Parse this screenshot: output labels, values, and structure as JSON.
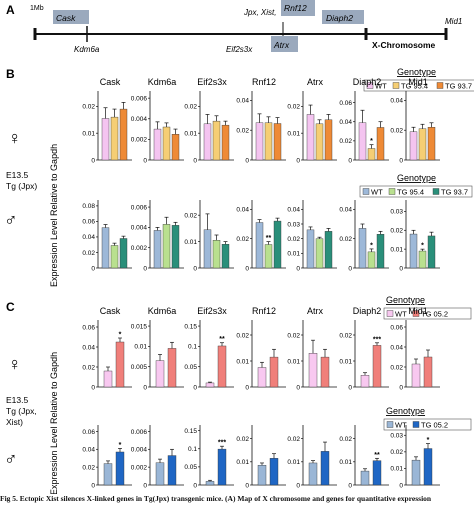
{
  "panel_labels": {
    "a": "A",
    "b": "B",
    "c": "C"
  },
  "map": {
    "start_label": "1Mb",
    "end_label": "Mid1",
    "chromosome_label": "X-Chromosome",
    "box_genes": [
      "Cask",
      "Rnf12",
      "Diaph2",
      "Atrx"
    ],
    "label_genes": [
      "Kdm6a",
      "Jpx, Xist,",
      "Eif2s3x",
      "Diaph2",
      "Mid1"
    ]
  },
  "common": {
    "y_axis_title": "Expression Level Relative to Gapdh",
    "genotype_title": "Genotype",
    "female_symbol": "♀",
    "male_symbol": "♂"
  },
  "panel_b": {
    "condition_lines": [
      "E13.5",
      "Tg (Jpx)"
    ],
    "female_legend": [
      "WT",
      "TG 95.4",
      "TG 93.7"
    ],
    "male_legend": [
      "WT",
      "TG 95.4",
      "TG 93.7"
    ]
  },
  "panel_c": {
    "condition_lines": [
      "E13.5",
      "Tg (Jpx,",
      "Xist)"
    ],
    "female_legend": [
      "WT",
      "TG 05.2"
    ],
    "male_legend": [
      "WT",
      "TG 05.2"
    ]
  },
  "caption": "Fig 5. Ectopic Xist silences X-linked genes in Tg(Jpx) transgenic mice. (A) Map of X chromosome and genes for quantitative expression",
  "colors": {
    "b_female": [
      "#f4c4f0",
      "#f5ce74",
      "#ee8a36"
    ],
    "b_male": [
      "#9db8d8",
      "#b9e08f",
      "#2a8f7a"
    ],
    "c_female": [
      "#f8c8f0",
      "#f07f7a"
    ],
    "c_male": [
      "#9ab6d6",
      "#1f66c4"
    ],
    "map_box": "#9aa9bd"
  },
  "chart_data": [
    {
      "panel": "B",
      "row": "female",
      "type": "bar",
      "title": "Cask",
      "yticks": [
        "0",
        "0.01",
        "0.02"
      ],
      "ylim": [
        0,
        0.025
      ],
      "series": [
        {
          "name": "WT",
          "value": 0.0155,
          "err": 0.004
        },
        {
          "name": "TG 95.4",
          "value": 0.016,
          "err": 0.003
        },
        {
          "name": "TG 93.7",
          "value": 0.019,
          "err": 0.0025
        }
      ],
      "sig": []
    },
    {
      "panel": "B",
      "row": "female",
      "type": "bar",
      "title": "Kdm6a",
      "yticks": [
        "0",
        "0.002",
        "0.004",
        "0.006"
      ],
      "ylim": [
        0,
        0.0065
      ],
      "series": [
        {
          "name": "WT",
          "value": 0.003,
          "err": 0.0007
        },
        {
          "name": "TG 95.4",
          "value": 0.0032,
          "err": 0.0004
        },
        {
          "name": "TG 93.7",
          "value": 0.0025,
          "err": 0.0005
        }
      ],
      "sig": []
    },
    {
      "panel": "B",
      "row": "female",
      "type": "bar",
      "title": "Eif2s3x",
      "yticks": [
        "0",
        "0.01",
        "0.02"
      ],
      "ylim": [
        0,
        0.025
      ],
      "series": [
        {
          "name": "WT",
          "value": 0.0135,
          "err": 0.0035
        },
        {
          "name": "TG 95.4",
          "value": 0.0145,
          "err": 0.002
        },
        {
          "name": "TG 93.7",
          "value": 0.013,
          "err": 0.0015
        }
      ],
      "sig": []
    },
    {
      "panel": "B",
      "row": "female",
      "type": "bar",
      "title": "Rnf12",
      "yticks": [
        "0",
        "0.02",
        "0.04"
      ],
      "ylim": [
        0,
        0.045
      ],
      "series": [
        {
          "name": "WT",
          "value": 0.025,
          "err": 0.006
        },
        {
          "name": "TG 95.4",
          "value": 0.025,
          "err": 0.004
        },
        {
          "name": "TG 93.7",
          "value": 0.0245,
          "err": 0.004
        }
      ],
      "sig": []
    },
    {
      "panel": "B",
      "row": "female",
      "type": "bar",
      "title": "Atrx",
      "yticks": [
        "0",
        "0.01",
        "0.02"
      ],
      "ylim": [
        0,
        0.025
      ],
      "series": [
        {
          "name": "WT",
          "value": 0.017,
          "err": 0.0035
        },
        {
          "name": "TG 95.4",
          "value": 0.0135,
          "err": 0.0015
        },
        {
          "name": "TG 93.7",
          "value": 0.015,
          "err": 0.002
        }
      ],
      "sig": []
    },
    {
      "panel": "B",
      "row": "female",
      "type": "bar",
      "title": "Diaph2",
      "yticks": [
        "0",
        "0.02",
        "0.04",
        "0.06"
      ],
      "ylim": [
        0,
        0.07
      ],
      "series": [
        {
          "name": "WT",
          "value": 0.039,
          "err": 0.013
        },
        {
          "name": "TG 95.4",
          "value": 0.012,
          "err": 0.004
        },
        {
          "name": "TG 93.7",
          "value": 0.034,
          "err": 0.006
        }
      ],
      "sig": [
        {
          "index": 1,
          "label": "*"
        }
      ]
    },
    {
      "panel": "B",
      "row": "female",
      "type": "bar",
      "title": "Mid1",
      "yticks": [
        "0",
        "0.02",
        "0.04"
      ],
      "ylim": [
        0,
        0.045
      ],
      "series": [
        {
          "name": "WT",
          "value": 0.019,
          "err": 0.003
        },
        {
          "name": "TG 95.4",
          "value": 0.021,
          "err": 0.003
        },
        {
          "name": "TG 93.7",
          "value": 0.022,
          "err": 0.003
        }
      ],
      "sig": []
    },
    {
      "panel": "B",
      "row": "male",
      "type": "bar",
      "title": "",
      "yticks": [
        "0",
        "0.02",
        "0.04",
        "0.06",
        "0.08"
      ],
      "ylim": [
        0,
        0.085
      ],
      "series": [
        {
          "name": "WT",
          "value": 0.052,
          "err": 0.004
        },
        {
          "name": "TG 95.4",
          "value": 0.029,
          "err": 0.003
        },
        {
          "name": "TG 93.7",
          "value": 0.038,
          "err": 0.003
        }
      ],
      "sig": []
    },
    {
      "panel": "B",
      "row": "male",
      "type": "bar",
      "title": "",
      "yticks": [
        "0",
        "0.002",
        "0.004",
        "0.006"
      ],
      "ylim": [
        0,
        0.0065
      ],
      "series": [
        {
          "name": "WT",
          "value": 0.0037,
          "err": 0.0003
        },
        {
          "name": "TG 95.4",
          "value": 0.0043,
          "err": 0.0007
        },
        {
          "name": "TG 93.7",
          "value": 0.0042,
          "err": 0.0003
        }
      ],
      "sig": []
    },
    {
      "panel": "B",
      "row": "male",
      "type": "bar",
      "title": "",
      "yticks": [
        "0",
        "0.01",
        "0.02"
      ],
      "ylim": [
        0,
        0.025
      ],
      "series": [
        {
          "name": "WT",
          "value": 0.0145,
          "err": 0.006
        },
        {
          "name": "TG 95.4",
          "value": 0.0105,
          "err": 0.002
        },
        {
          "name": "TG 93.7",
          "value": 0.009,
          "err": 0.001
        }
      ],
      "sig": []
    },
    {
      "panel": "B",
      "row": "male",
      "type": "bar",
      "title": "",
      "yticks": [
        "0",
        "0.02",
        "0.04"
      ],
      "ylim": [
        0,
        0.045
      ],
      "series": [
        {
          "name": "WT",
          "value": 0.031,
          "err": 0.002
        },
        {
          "name": "TG 95.4",
          "value": 0.016,
          "err": 0.002
        },
        {
          "name": "TG 93.7",
          "value": 0.032,
          "err": 0.002
        }
      ],
      "sig": [
        {
          "index": 1,
          "label": "**"
        }
      ]
    },
    {
      "panel": "B",
      "row": "male",
      "type": "bar",
      "title": "",
      "yticks": [
        "0",
        "0.01",
        "0.02",
        "0.03",
        "0.04"
      ],
      "ylim": [
        0,
        0.045
      ],
      "series": [
        {
          "name": "WT",
          "value": 0.026,
          "err": 0.002
        },
        {
          "name": "TG 95.4",
          "value": 0.02,
          "err": 0.001
        },
        {
          "name": "TG 93.7",
          "value": 0.025,
          "err": 0.002
        }
      ],
      "sig": []
    },
    {
      "panel": "B",
      "row": "male",
      "type": "bar",
      "title": "",
      "yticks": [
        "0",
        "0.02",
        "0.04"
      ],
      "ylim": [
        0,
        0.045
      ],
      "series": [
        {
          "name": "WT",
          "value": 0.027,
          "err": 0.003
        },
        {
          "name": "TG 95.4",
          "value": 0.011,
          "err": 0.002
        },
        {
          "name": "TG 93.7",
          "value": 0.023,
          "err": 0.002
        }
      ],
      "sig": [
        {
          "index": 1,
          "label": "*"
        }
      ]
    },
    {
      "panel": "B",
      "row": "male",
      "type": "bar",
      "title": "",
      "yticks": [
        "0",
        "0.01",
        "0.02",
        "0.03"
      ],
      "ylim": [
        0,
        0.035
      ],
      "series": [
        {
          "name": "WT",
          "value": 0.018,
          "err": 0.002
        },
        {
          "name": "TG 95.4",
          "value": 0.009,
          "err": 0.001
        },
        {
          "name": "TG 93.7",
          "value": 0.017,
          "err": 0.002
        }
      ],
      "sig": [
        {
          "index": 1,
          "label": "*"
        }
      ]
    },
    {
      "panel": "C",
      "row": "female",
      "type": "bar",
      "title": "Cask",
      "yticks": [
        "0",
        "0.02",
        "0.04",
        "0.06"
      ],
      "ylim": [
        0,
        0.065
      ],
      "series": [
        {
          "name": "WT",
          "value": 0.016,
          "err": 0.004
        },
        {
          "name": "TG 05.2",
          "value": 0.045,
          "err": 0.004
        }
      ],
      "sig": [
        {
          "index": 1,
          "label": "*"
        }
      ]
    },
    {
      "panel": "C",
      "row": "female",
      "type": "bar",
      "title": "Kdm6a",
      "yticks": [
        "0",
        "0.005",
        "0.01",
        "0.015"
      ],
      "ylim": [
        0,
        0.016
      ],
      "series": [
        {
          "name": "WT",
          "value": 0.0065,
          "err": 0.0015
        },
        {
          "name": "TG 05.2",
          "value": 0.0095,
          "err": 0.0015
        }
      ],
      "sig": []
    },
    {
      "panel": "C",
      "row": "female",
      "type": "bar",
      "title": "Eif2s3x",
      "yticks": [
        "0",
        "0.05",
        "0.1",
        "0.15"
      ],
      "ylim": [
        0,
        0.16
      ],
      "series": [
        {
          "name": "WT",
          "value": 0.01,
          "err": 0.002
        },
        {
          "name": "TG 05.2",
          "value": 0.101,
          "err": 0.008
        }
      ],
      "sig": [
        {
          "index": 1,
          "label": "**"
        }
      ]
    },
    {
      "panel": "C",
      "row": "female",
      "type": "bar",
      "title": "Rnf12",
      "yticks": [
        "0",
        "0.01",
        "0.02"
      ],
      "ylim": [
        0,
        0.025
      ],
      "series": [
        {
          "name": "WT",
          "value": 0.0075,
          "err": 0.002
        },
        {
          "name": "TG 05.2",
          "value": 0.0115,
          "err": 0.003
        }
      ],
      "sig": []
    },
    {
      "panel": "C",
      "row": "female",
      "type": "bar",
      "title": "Atrx",
      "yticks": [
        "0",
        "0.01",
        "0.02"
      ],
      "ylim": [
        0,
        0.025
      ],
      "series": [
        {
          "name": "WT",
          "value": 0.013,
          "err": 0.005
        },
        {
          "name": "TG 05.2",
          "value": 0.0115,
          "err": 0.003
        }
      ],
      "sig": []
    },
    {
      "panel": "C",
      "row": "female",
      "type": "bar",
      "title": "Diaph2",
      "yticks": [
        "0",
        "0.01",
        "0.02"
      ],
      "ylim": [
        0,
        0.025
      ],
      "series": [
        {
          "name": "WT",
          "value": 0.0045,
          "err": 0.001
        },
        {
          "name": "TG 05.2",
          "value": 0.016,
          "err": 0.001
        }
      ],
      "sig": [
        {
          "index": 1,
          "label": "***"
        }
      ]
    },
    {
      "panel": "C",
      "row": "female",
      "type": "bar",
      "title": "Mid1",
      "yticks": [
        "0",
        "0.02",
        "0.04",
        "0.06"
      ],
      "ylim": [
        0,
        0.065
      ],
      "series": [
        {
          "name": "WT",
          "value": 0.023,
          "err": 0.005
        },
        {
          "name": "TG 05.2",
          "value": 0.03,
          "err": 0.007
        }
      ],
      "sig": []
    },
    {
      "panel": "C",
      "row": "male",
      "type": "bar",
      "title": "",
      "yticks": [
        "0",
        "0.02",
        "0.04",
        "0.06"
      ],
      "ylim": [
        0,
        0.065
      ],
      "series": [
        {
          "name": "WT",
          "value": 0.024,
          "err": 0.003
        },
        {
          "name": "TG 05.2",
          "value": 0.037,
          "err": 0.004
        }
      ],
      "sig": [
        {
          "index": 1,
          "label": "*"
        }
      ]
    },
    {
      "panel": "C",
      "row": "male",
      "type": "bar",
      "title": "",
      "yticks": [
        "0",
        "0.002",
        "0.004",
        "0.006"
      ],
      "ylim": [
        0,
        0.0065
      ],
      "series": [
        {
          "name": "WT",
          "value": 0.0025,
          "err": 0.0004
        },
        {
          "name": "TG 05.2",
          "value": 0.0033,
          "err": 0.0007
        }
      ],
      "sig": []
    },
    {
      "panel": "C",
      "row": "male",
      "type": "bar",
      "title": "",
      "yticks": [
        "0",
        "0.05",
        "0.1",
        "0.15"
      ],
      "ylim": [
        0,
        0.16
      ],
      "series": [
        {
          "name": "WT",
          "value": 0.01,
          "err": 0.003
        },
        {
          "name": "TG 05.2",
          "value": 0.099,
          "err": 0.008
        }
      ],
      "sig": [
        {
          "index": 1,
          "label": "***"
        }
      ]
    },
    {
      "panel": "C",
      "row": "male",
      "type": "bar",
      "title": "",
      "yticks": [
        "0",
        "0.01",
        "0.02"
      ],
      "ylim": [
        0,
        0.025
      ],
      "series": [
        {
          "name": "WT",
          "value": 0.0085,
          "err": 0.001
        },
        {
          "name": "TG 05.2",
          "value": 0.0115,
          "err": 0.002
        }
      ],
      "sig": []
    },
    {
      "panel": "C",
      "row": "male",
      "type": "bar",
      "title": "",
      "yticks": [
        "0",
        "0.01",
        "0.02"
      ],
      "ylim": [
        0,
        0.025
      ],
      "series": [
        {
          "name": "WT",
          "value": 0.0095,
          "err": 0.001
        },
        {
          "name": "TG 05.2",
          "value": 0.0145,
          "err": 0.004
        }
      ],
      "sig": []
    },
    {
      "panel": "C",
      "row": "male",
      "type": "bar",
      "title": "",
      "yticks": [
        "0",
        "0.01",
        "0.02"
      ],
      "ylim": [
        0,
        0.025
      ],
      "series": [
        {
          "name": "WT",
          "value": 0.006,
          "err": 0.001
        },
        {
          "name": "TG 05.2",
          "value": 0.0105,
          "err": 0.001
        }
      ],
      "sig": [
        {
          "index": 1,
          "label": "**"
        }
      ]
    },
    {
      "panel": "C",
      "row": "male",
      "type": "bar",
      "title": "",
      "yticks": [
        "0",
        "0.01",
        "0.02",
        "0.03"
      ],
      "ylim": [
        0,
        0.035
      ],
      "series": [
        {
          "name": "WT",
          "value": 0.015,
          "err": 0.002
        },
        {
          "name": "TG 05.2",
          "value": 0.022,
          "err": 0.003
        }
      ],
      "sig": [
        {
          "index": 1,
          "label": "*"
        }
      ]
    }
  ]
}
